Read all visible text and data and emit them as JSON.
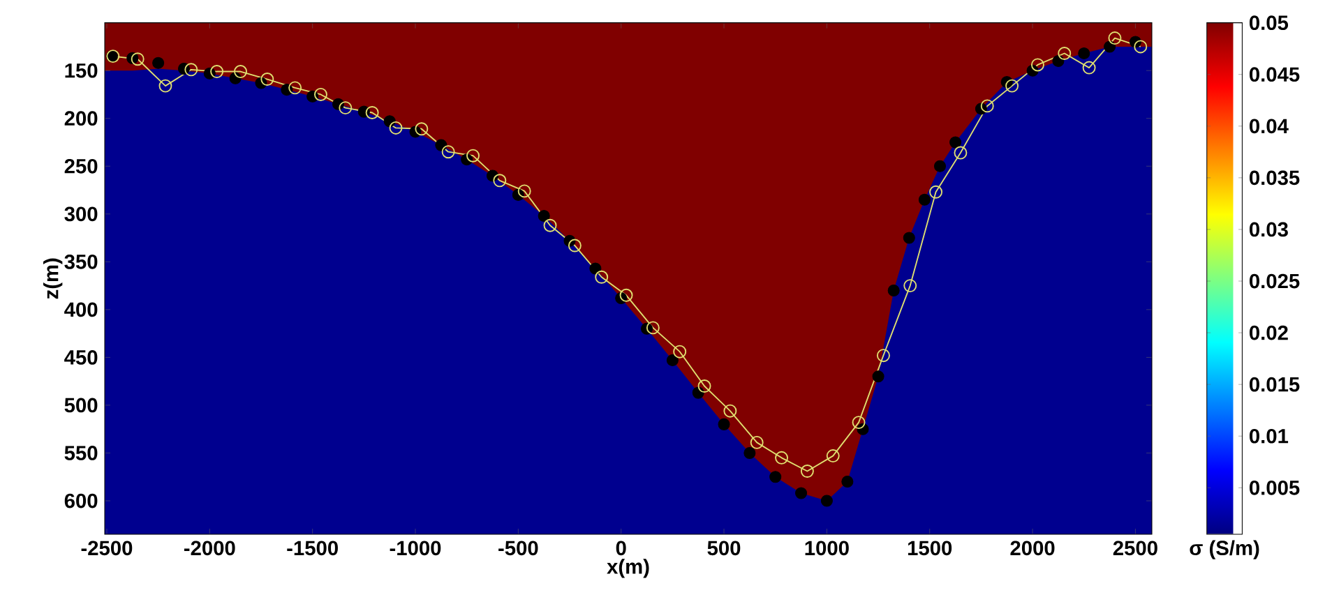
{
  "chart_data": {
    "type": "line",
    "xlabel": "x(m)",
    "ylabel": "z(m)",
    "clabel": "σ (S/m)",
    "xlim": [
      -2510,
      2580
    ],
    "ylim": [
      635,
      100
    ],
    "xticks": [
      -2500,
      -2000,
      -1500,
      -1000,
      -500,
      0,
      500,
      1000,
      1500,
      2000,
      2500
    ],
    "yticks": [
      150,
      200,
      250,
      300,
      350,
      400,
      450,
      500,
      550,
      600
    ],
    "clim": [
      0.0005,
      0.05
    ],
    "cticks": [
      0.005,
      0.01,
      0.015,
      0.02,
      0.025,
      0.03,
      0.035,
      0.04,
      0.045,
      0.05
    ],
    "bands": [
      {
        "axis": "y",
        "from": 635,
        "to": 100,
        "color": "#00008f"
      }
    ],
    "series": [
      {
        "type": "area",
        "color": "#800000",
        "x": [
          -2510,
          -2375,
          -2250,
          -2125,
          -2000,
          -1875,
          -1750,
          -1625,
          -1500,
          -1375,
          -1250,
          -1125,
          -1000,
          -875,
          -750,
          -625,
          -500,
          -375,
          -250,
          -125,
          0,
          125,
          250,
          375,
          500,
          625,
          750,
          875,
          1000,
          1100,
          1175,
          1250,
          1325,
          1400,
          1475,
          1550,
          1625,
          1750,
          1875,
          2000,
          2125,
          2250,
          2375,
          2580
        ],
        "values": [
          150,
          150,
          148,
          150,
          153,
          158,
          163,
          170,
          177,
          185,
          193,
          203,
          214,
          228,
          243,
          260,
          280,
          302,
          328,
          357,
          388,
          420,
          453,
          487,
          520,
          550,
          575,
          592,
          600,
          580,
          525,
          470,
          380,
          325,
          285,
          250,
          225,
          190,
          162,
          150,
          140,
          132,
          125,
          125
        ]
      },
      {
        "type": "scatter",
        "color": "#000000",
        "marker": "circle",
        "x": [
          -2475,
          -2375,
          -2250,
          -2125,
          -2000,
          -1875,
          -1750,
          -1625,
          -1500,
          -1375,
          -1250,
          -1125,
          -1000,
          -875,
          -750,
          -625,
          -500,
          -375,
          -250,
          -125,
          0,
          125,
          250,
          375,
          500,
          625,
          750,
          875,
          1000,
          1100,
          1175,
          1250,
          1325,
          1400,
          1475,
          1550,
          1625,
          1750,
          1875,
          2000,
          2125,
          2250,
          2375,
          2500
        ],
        "values": [
          135,
          137,
          142,
          148,
          153,
          158,
          163,
          170,
          177,
          185,
          193,
          203,
          214,
          228,
          243,
          260,
          280,
          302,
          328,
          357,
          388,
          420,
          453,
          487,
          520,
          550,
          575,
          592,
          600,
          580,
          525,
          470,
          380,
          325,
          285,
          250,
          225,
          190,
          162,
          150,
          140,
          132,
          125,
          120
        ]
      },
      {
        "color": "#e0e070",
        "marker": "circle",
        "x": [
          -2470,
          -2350,
          -2215,
          -2090,
          -1965,
          -1850,
          -1720,
          -1585,
          -1460,
          -1340,
          -1210,
          -1095,
          -970,
          -840,
          -720,
          -590,
          -470,
          -345,
          -225,
          -95,
          25,
          155,
          285,
          405,
          530,
          660,
          780,
          905,
          1030,
          1155,
          1275,
          1405,
          1530,
          1650,
          1780,
          1900,
          2025,
          2155,
          2275,
          2400,
          2525
        ],
        "values": [
          135,
          138,
          166,
          149,
          151,
          151,
          159,
          168,
          175,
          189,
          194,
          210,
          211,
          235,
          239,
          265,
          276,
          312,
          333,
          366,
          385,
          419,
          444,
          480,
          506,
          539,
          555,
          569,
          553,
          518,
          448,
          375,
          277,
          236,
          187,
          166,
          144,
          132,
          147,
          116,
          125
        ]
      }
    ]
  }
}
